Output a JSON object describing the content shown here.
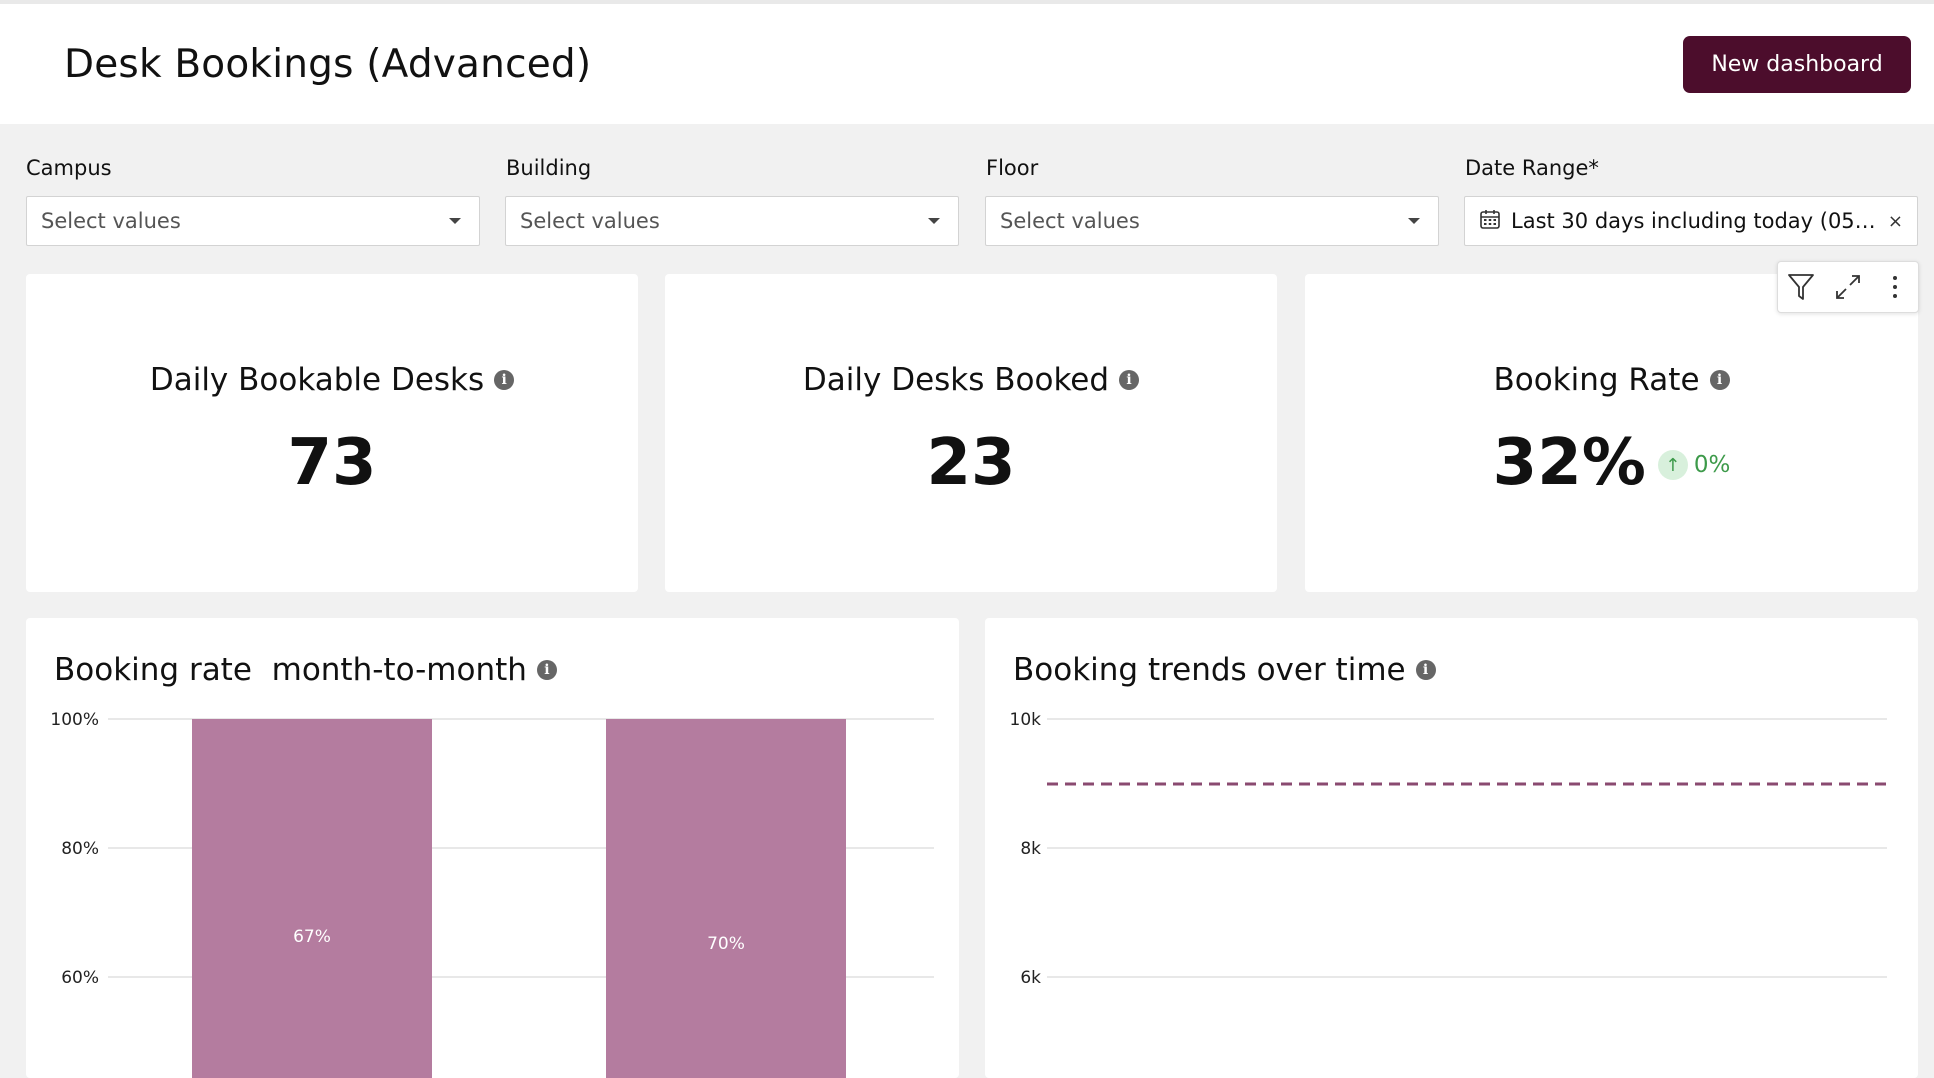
{
  "header": {
    "title": "Desk Bookings (Advanced)",
    "new_dashboard_label": "New dashboard",
    "accent": "#4c0d2c"
  },
  "filters": [
    {
      "label": "Campus",
      "placeholder": "Select values"
    },
    {
      "label": "Building",
      "placeholder": "Select values"
    },
    {
      "label": "Floor",
      "placeholder": "Select values"
    },
    {
      "label": "Date Range*",
      "value": "Last 30 days including today (05/...",
      "clear": "×"
    }
  ],
  "kpis": [
    {
      "title": "Daily Bookable Desks",
      "value": "73"
    },
    {
      "title": "Daily Desks Booked",
      "value": "23"
    },
    {
      "title": "Booking Rate",
      "value": "32%",
      "trend": "0%",
      "trend_color": "#3d9a4a"
    }
  ],
  "toolbar": {
    "icons": [
      "filter-icon",
      "expand-icon",
      "more-vertical-icon"
    ]
  },
  "chart_data": [
    {
      "type": "bar",
      "title": "Booking rate  month-to-month",
      "categories": [
        "",
        ""
      ],
      "values": [
        67,
        70
      ],
      "value_labels": [
        "67%",
        "70%"
      ],
      "yticks": [
        "100%",
        "80%",
        "60%"
      ],
      "ytick_values": [
        100,
        80,
        60
      ],
      "bar_color": "#b47c9f",
      "grid": true
    },
    {
      "type": "line",
      "title": "Booking trends over time",
      "yticks": [
        "10k",
        "8k",
        "6k"
      ],
      "ytick_values": [
        10000,
        8000,
        6000
      ],
      "reference_line": 9000,
      "line_color": "#8a4a70",
      "grid": true
    }
  ]
}
